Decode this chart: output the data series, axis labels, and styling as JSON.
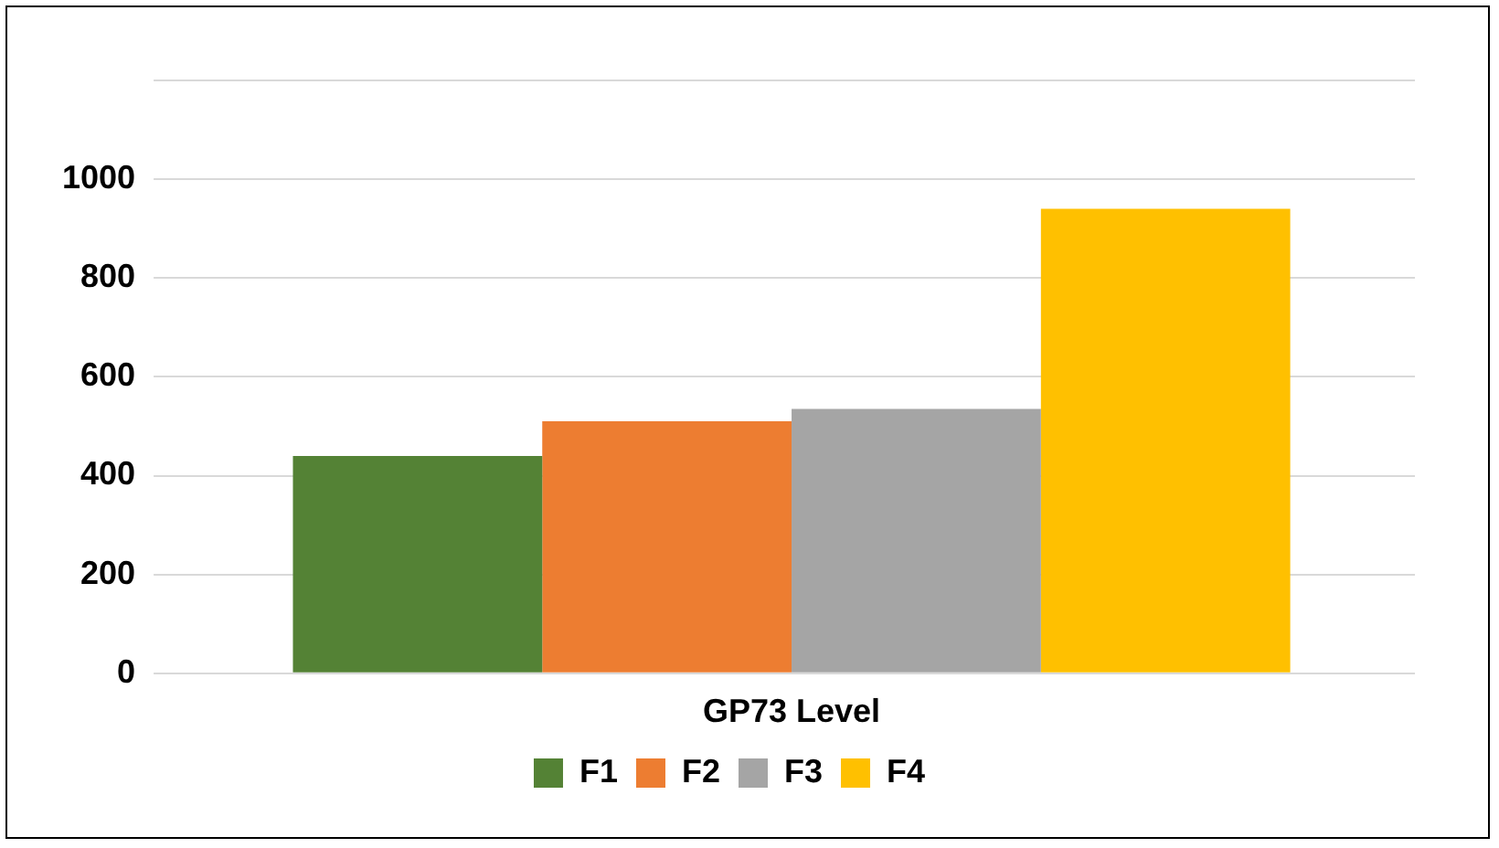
{
  "chart_data": {
    "type": "bar",
    "categories": [
      "GP73 Level"
    ],
    "series": [
      {
        "name": "F1",
        "color": "#548235",
        "values": [
          440
        ]
      },
      {
        "name": "F2",
        "color": "#ed7d31",
        "values": [
          510
        ]
      },
      {
        "name": "F3",
        "color": "#a5a5a5",
        "values": [
          535
        ]
      },
      {
        "name": "F4",
        "color": "#ffc000",
        "values": [
          940
        ]
      }
    ],
    "ylim": [
      0,
      1200
    ],
    "yticks": [
      0,
      200,
      400,
      600,
      800,
      1000,
      {
        "value": 1200,
        "label": null
      }
    ],
    "grid": "y",
    "legend": "bottom"
  }
}
